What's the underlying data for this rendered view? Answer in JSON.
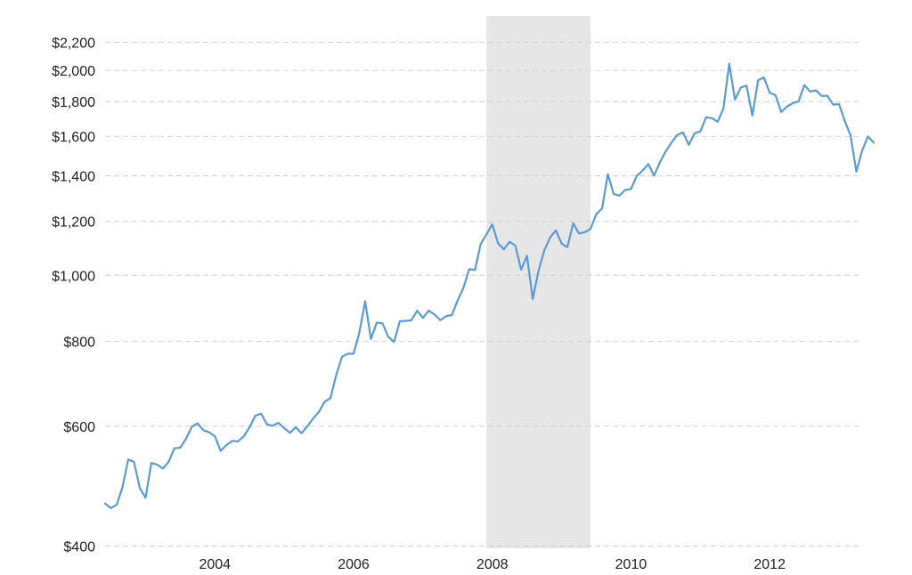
{
  "chart_data": {
    "type": "line",
    "title": "",
    "xlabel": "",
    "ylabel": "",
    "y_scale": "log",
    "ylim": [
      400,
      2300
    ],
    "xlim": [
      "2002-06",
      "2013-05"
    ],
    "grid": true,
    "y_ticks": [
      {
        "value": 400,
        "label": "$400"
      },
      {
        "value": 600,
        "label": "$600"
      },
      {
        "value": 800,
        "label": "$800"
      },
      {
        "value": 1000,
        "label": "$1,000"
      },
      {
        "value": 1200,
        "label": "$1,200"
      },
      {
        "value": 1400,
        "label": "$1,400"
      },
      {
        "value": 1600,
        "label": "$1,600"
      },
      {
        "value": 1800,
        "label": "$1,800"
      },
      {
        "value": 2000,
        "label": "$2,000"
      },
      {
        "value": 2200,
        "label": "$2,200"
      }
    ],
    "x_ticks": [
      {
        "value": "2004-01",
        "label": "2004"
      },
      {
        "value": "2006-01",
        "label": "2006"
      },
      {
        "value": "2008-01",
        "label": "2008"
      },
      {
        "value": "2010-01",
        "label": "2010"
      },
      {
        "value": "2012-01",
        "label": "2012"
      }
    ],
    "shaded_regions": [
      {
        "start": "2007-12",
        "end": "2009-06",
        "color": "#e6e6e6"
      }
    ],
    "series": [
      {
        "color": "#5b9bd5",
        "points": [
          [
            "2002-06",
            462
          ],
          [
            "2002-07",
            455
          ],
          [
            "2002-08",
            460
          ],
          [
            "2002-09",
            488
          ],
          [
            "2002-10",
            536
          ],
          [
            "2002-11",
            532
          ],
          [
            "2002-12",
            487
          ],
          [
            "2003-01",
            471
          ],
          [
            "2003-02",
            530
          ],
          [
            "2003-03",
            527
          ],
          [
            "2003-04",
            520
          ],
          [
            "2003-05",
            532
          ],
          [
            "2003-06",
            557
          ],
          [
            "2003-07",
            558
          ],
          [
            "2003-08",
            575
          ],
          [
            "2003-09",
            599
          ],
          [
            "2003-10",
            606
          ],
          [
            "2003-11",
            592
          ],
          [
            "2003-12",
            588
          ],
          [
            "2004-01",
            580
          ],
          [
            "2004-02",
            552
          ],
          [
            "2004-03",
            563
          ],
          [
            "2004-04",
            571
          ],
          [
            "2004-05",
            570
          ],
          [
            "2004-06",
            580
          ],
          [
            "2004-07",
            598
          ],
          [
            "2004-08",
            622
          ],
          [
            "2004-09",
            626
          ],
          [
            "2004-10",
            604
          ],
          [
            "2004-11",
            601
          ],
          [
            "2004-12",
            607
          ],
          [
            "2005-01",
            596
          ],
          [
            "2005-02",
            587
          ],
          [
            "2005-03",
            598
          ],
          [
            "2005-04",
            586
          ],
          [
            "2005-05",
            600
          ],
          [
            "2005-06",
            616
          ],
          [
            "2005-07",
            630
          ],
          [
            "2005-08",
            652
          ],
          [
            "2005-09",
            660
          ],
          [
            "2005-10",
            714
          ],
          [
            "2005-11",
            759
          ],
          [
            "2005-12",
            767
          ],
          [
            "2006-01",
            767
          ],
          [
            "2006-02",
            824
          ],
          [
            "2006-03",
            916
          ],
          [
            "2006-04",
            806
          ],
          [
            "2006-05",
            852
          ],
          [
            "2006-06",
            850
          ],
          [
            "2006-07",
            812
          ],
          [
            "2006-08",
            798
          ],
          [
            "2006-09",
            856
          ],
          [
            "2006-10",
            857
          ],
          [
            "2006-11",
            859
          ],
          [
            "2006-12",
            887
          ],
          [
            "2007-01",
            866
          ],
          [
            "2007-02",
            887
          ],
          [
            "2007-03",
            876
          ],
          [
            "2007-04",
            859
          ],
          [
            "2007-05",
            871
          ],
          [
            "2007-06",
            874
          ],
          [
            "2007-07",
            918
          ],
          [
            "2007-08",
            958
          ],
          [
            "2007-09",
            1021
          ],
          [
            "2007-10",
            1018
          ],
          [
            "2007-11",
            1112
          ],
          [
            "2007-12",
            1149
          ],
          [
            "2008-01",
            1188
          ],
          [
            "2008-02",
            1114
          ],
          [
            "2008-03",
            1092
          ],
          [
            "2008-04",
            1120
          ],
          [
            "2008-05",
            1105
          ],
          [
            "2008-06",
            1019
          ],
          [
            "2008-07",
            1068
          ],
          [
            "2008-08",
            923
          ],
          [
            "2008-09",
            1015
          ],
          [
            "2008-10",
            1088
          ],
          [
            "2008-11",
            1136
          ],
          [
            "2008-12",
            1164
          ],
          [
            "2009-01",
            1113
          ],
          [
            "2009-02",
            1100
          ],
          [
            "2009-03",
            1193
          ],
          [
            "2009-04",
            1152
          ],
          [
            "2009-05",
            1157
          ],
          [
            "2009-06",
            1170
          ],
          [
            "2009-07",
            1230
          ],
          [
            "2009-08",
            1254
          ],
          [
            "2009-09",
            1408
          ],
          [
            "2009-10",
            1317
          ],
          [
            "2009-11",
            1309
          ],
          [
            "2009-12",
            1335
          ],
          [
            "2010-01",
            1339
          ],
          [
            "2010-02",
            1400
          ],
          [
            "2010-03",
            1425
          ],
          [
            "2010-04",
            1457
          ],
          [
            "2010-05",
            1401
          ],
          [
            "2010-06",
            1466
          ],
          [
            "2010-07",
            1520
          ],
          [
            "2010-08",
            1567
          ],
          [
            "2010-09",
            1608
          ],
          [
            "2010-10",
            1622
          ],
          [
            "2010-11",
            1555
          ],
          [
            "2010-12",
            1617
          ],
          [
            "2011-01",
            1627
          ],
          [
            "2011-02",
            1707
          ],
          [
            "2011-03",
            1702
          ],
          [
            "2011-04",
            1681
          ],
          [
            "2011-05",
            1759
          ],
          [
            "2011-06",
            2046
          ],
          [
            "2011-07",
            1812
          ],
          [
            "2011-08",
            1887
          ],
          [
            "2011-09",
            1900
          ],
          [
            "2011-10",
            1717
          ],
          [
            "2011-11",
            1935
          ],
          [
            "2011-12",
            1953
          ],
          [
            "2012-01",
            1855
          ],
          [
            "2012-02",
            1840
          ],
          [
            "2012-03",
            1738
          ],
          [
            "2012-04",
            1770
          ],
          [
            "2012-05",
            1790
          ],
          [
            "2012-06",
            1801
          ],
          [
            "2012-07",
            1903
          ],
          [
            "2012-08",
            1862
          ],
          [
            "2012-09",
            1870
          ],
          [
            "2012-10",
            1835
          ],
          [
            "2012-11",
            1836
          ],
          [
            "2012-12",
            1781
          ],
          [
            "2013-01",
            1785
          ],
          [
            "2013-02",
            1686
          ],
          [
            "2013-03",
            1605
          ],
          [
            "2013-04",
            1420
          ],
          [
            "2013-05",
            1525
          ],
          [
            "2013-06",
            1600
          ],
          [
            "2013-07",
            1567
          ]
        ]
      }
    ]
  }
}
